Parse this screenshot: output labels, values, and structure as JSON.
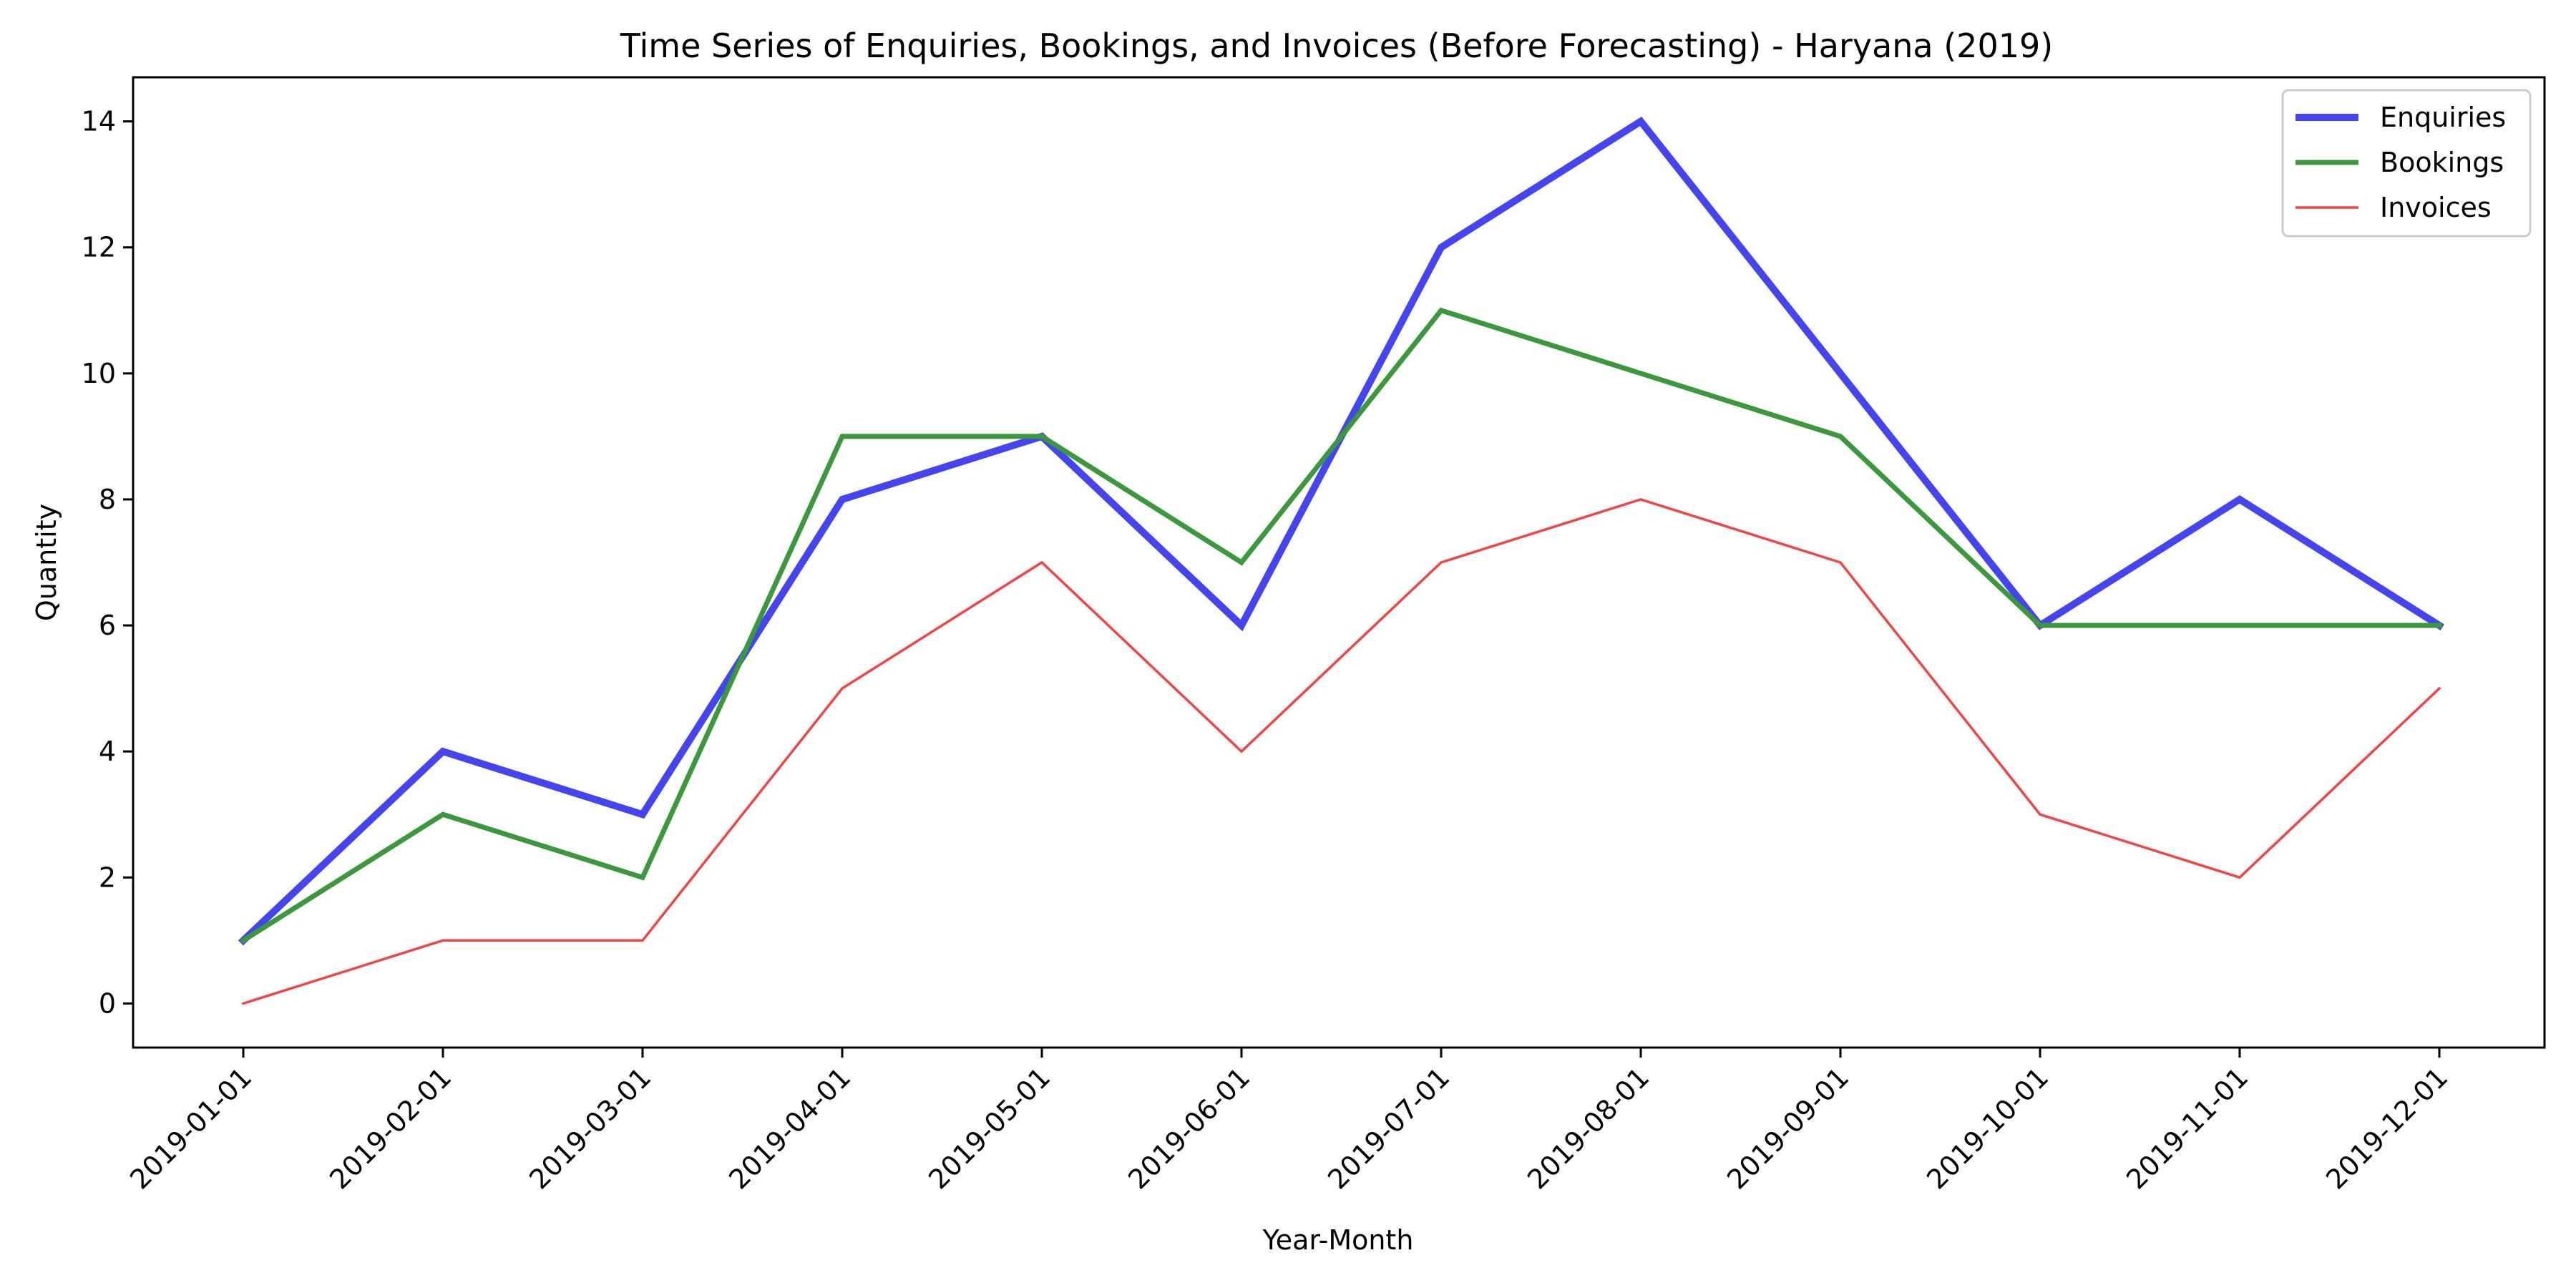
{
  "chart_data": {
    "type": "line",
    "title": "Time Series of Enquiries, Bookings, and Invoices (Before Forecasting) - Haryana (2019)",
    "xlabel": "Year-Month",
    "ylabel": "Quantity",
    "x": [
      "2019-01-01",
      "2019-02-01",
      "2019-03-01",
      "2019-04-01",
      "2019-05-01",
      "2019-06-01",
      "2019-07-01",
      "2019-08-01",
      "2019-09-01",
      "2019-10-01",
      "2019-11-01",
      "2019-12-01"
    ],
    "ylim": [
      -0.7,
      14.7
    ],
    "yticks": [
      0,
      2,
      4,
      6,
      8,
      10,
      12,
      14
    ],
    "grid": false,
    "legend_position": "upper right",
    "series": [
      {
        "name": "Enquiries",
        "values": [
          1,
          4,
          3,
          8,
          9,
          6,
          12,
          14,
          10,
          6,
          8,
          6
        ],
        "color": "#4444f0",
        "style": "thick"
      },
      {
        "name": "Bookings",
        "values": [
          1,
          3,
          2,
          9,
          9,
          7,
          11,
          10,
          9,
          6,
          6,
          6
        ],
        "color": "#3c983c",
        "style": "medium"
      },
      {
        "name": "Invoices",
        "values": [
          0,
          1,
          1,
          5,
          7,
          4,
          7,
          8,
          7,
          3,
          2,
          5
        ],
        "color": "#f24444",
        "style": "thin"
      }
    ]
  }
}
